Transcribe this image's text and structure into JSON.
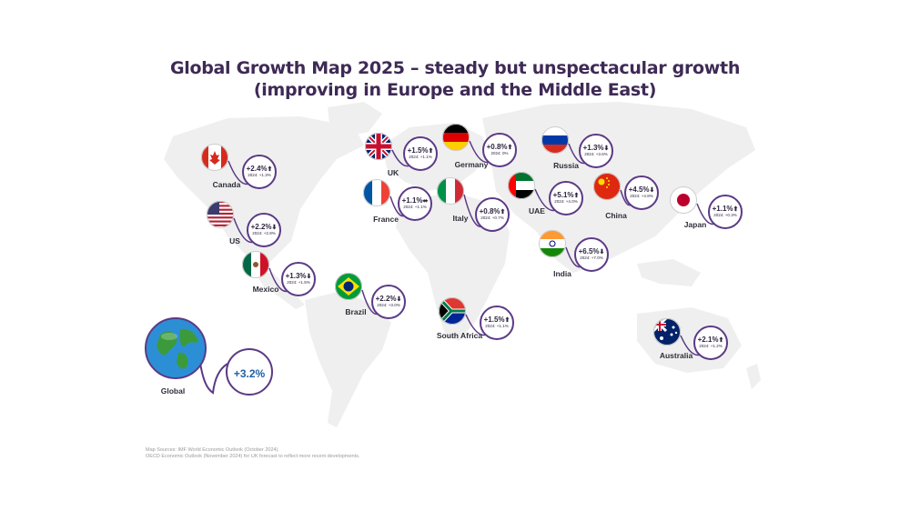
{
  "title_line1": "Global Growth Map 2025 – steady but unspectacular growth",
  "title_line2": "(improving in Europe and the Middle East)",
  "colors": {
    "accent": "#5b3a86",
    "map_land": "#eeeeee",
    "text": "#3e2a55"
  },
  "countries": [
    {
      "id": "canada",
      "name": "Canada",
      "growth": "+2.4%",
      "arrow": "up",
      "prev": "2024: +1.3%"
    },
    {
      "id": "us",
      "name": "US",
      "growth": "+2.2%",
      "arrow": "down",
      "prev": "2024: +2.8%"
    },
    {
      "id": "mexico",
      "name": "Mexico",
      "growth": "+1.3%",
      "arrow": "down",
      "prev": "2024: +1.5%"
    },
    {
      "id": "brazil",
      "name": "Brazil",
      "growth": "+2.2%",
      "arrow": "down",
      "prev": "2024: +3.0%"
    },
    {
      "id": "uk",
      "name": "UK",
      "growth": "+1.5%",
      "arrow": "up",
      "prev": "2024: +1.1%"
    },
    {
      "id": "france",
      "name": "France",
      "growth": "+1.1%",
      "arrow": "flat",
      "prev": "2024: +1.1%"
    },
    {
      "id": "germany",
      "name": "Germany",
      "growth": "+0.8%",
      "arrow": "up",
      "prev": "2024: 0%"
    },
    {
      "id": "italy",
      "name": "Italy",
      "growth": "+0.8%",
      "arrow": "up",
      "prev": "2024: +0.7%"
    },
    {
      "id": "uae",
      "name": "UAE",
      "growth": "+5.1%",
      "arrow": "up",
      "prev": "2024: +4.0%"
    },
    {
      "id": "russia",
      "name": "Russia",
      "growth": "+1.3%",
      "arrow": "down",
      "prev": "2024: +3.6%"
    },
    {
      "id": "china",
      "name": "China",
      "growth": "+4.5%",
      "arrow": "down",
      "prev": "2024: +4.8%"
    },
    {
      "id": "india",
      "name": "India",
      "growth": "+6.5%",
      "arrow": "down",
      "prev": "2024: +7.0%"
    },
    {
      "id": "japan",
      "name": "Japan",
      "growth": "+1.1%",
      "arrow": "up",
      "prev": "2024: +0.3%"
    },
    {
      "id": "south-africa",
      "name": "South Africa",
      "growth": "+1.5%",
      "arrow": "up",
      "prev": "2024: +1.1%"
    },
    {
      "id": "australia",
      "name": "Australia",
      "growth": "+2.1%",
      "arrow": "up",
      "prev": "2024: +1.2%"
    }
  ],
  "global": {
    "name": "Global",
    "growth": "+3.2%"
  },
  "source_line1": "Map Sources: IMF World Economic Outlook (October 2024).",
  "source_line2": "OECD Economic Outlook (November 2024) for UK forecast to reflect more recent developments."
}
